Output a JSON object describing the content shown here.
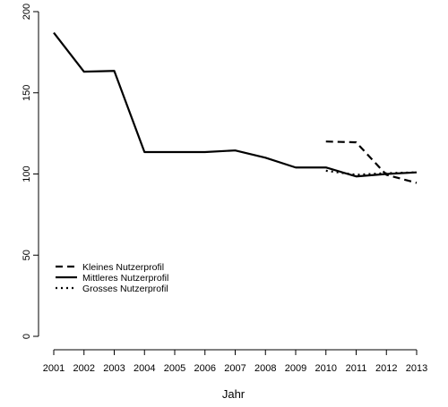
{
  "chart_data": {
    "type": "line",
    "title": "",
    "xlabel": "Jahr",
    "ylabel": "",
    "x": [
      2001,
      2002,
      2003,
      2004,
      2005,
      2006,
      2007,
      2008,
      2009,
      2010,
      2011,
      2012,
      2013
    ],
    "x_tick_labels": [
      "2001",
      "2002",
      "2003",
      "2004",
      "2005",
      "2006",
      "2007",
      "2008",
      "2009",
      "2010",
      "2011",
      "2012",
      "2013"
    ],
    "y_ticks": [
      0,
      50,
      100,
      150,
      200
    ],
    "y_tick_labels": [
      "0",
      "50",
      "100",
      "150",
      "200"
    ],
    "xlim": [
      2001,
      2013
    ],
    "ylim": [
      0,
      200
    ],
    "grid": false,
    "legend_position": "bottom-left",
    "series": [
      {
        "name": "Kleines Nutzerprofil",
        "line_style": "dashed",
        "color": "#000000",
        "x": [
          2010,
          2011,
          2012,
          2013
        ],
        "values": [
          120,
          119.5,
          99.5,
          94.5
        ]
      },
      {
        "name": "Mittleres Nutzerprofil",
        "line_style": "solid",
        "color": "#000000",
        "x": [
          2001,
          2002,
          2003,
          2004,
          2005,
          2006,
          2007,
          2008,
          2009,
          2010,
          2011,
          2012,
          2013
        ],
        "values": [
          187,
          163,
          163.5,
          113.5,
          113.5,
          113.5,
          114.5,
          110,
          104,
          104,
          98.5,
          100,
          101
        ]
      },
      {
        "name": "Grosses Nutzerprofil",
        "line_style": "dotted",
        "color": "#000000",
        "x": [
          2010,
          2011,
          2012,
          2013
        ],
        "values": [
          102,
          99.5,
          100.5,
          101
        ]
      }
    ]
  }
}
